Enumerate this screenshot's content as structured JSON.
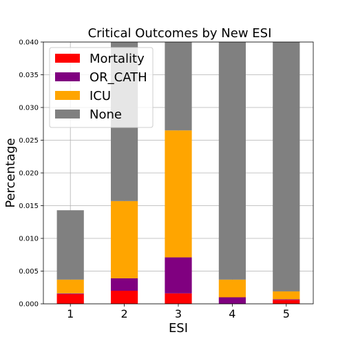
{
  "chart_data": {
    "type": "bar",
    "stacked": true,
    "title": "Critical Outcomes by New ESI",
    "xlabel": "ESI",
    "ylabel": "Percentage",
    "categories": [
      "1",
      "2",
      "3",
      "4",
      "5"
    ],
    "ylim": [
      0,
      0.04
    ],
    "yticks": [
      "0.000",
      "0.005",
      "0.010",
      "0.015",
      "0.020",
      "0.025",
      "0.030",
      "0.035",
      "0.040"
    ],
    "grid": true,
    "legend_position": "top-left",
    "series": [
      {
        "name": "Mortality",
        "color": "#ff0000",
        "values": [
          0.0015,
          0.002,
          0.0016,
          0.0,
          0.0006
        ]
      },
      {
        "name": "OR_CATH",
        "color": "#800080",
        "values": [
          0.0001,
          0.0019,
          0.0055,
          0.001,
          0.0001
        ]
      },
      {
        "name": "ICU",
        "color": "#ffa500",
        "values": [
          0.0021,
          0.0118,
          0.0194,
          0.0027,
          0.0012
        ]
      },
      {
        "name": "None",
        "color": "#808080",
        "values": [
          0.0106,
          0.0243,
          0.0135,
          0.0363,
          0.0381
        ]
      }
    ]
  }
}
